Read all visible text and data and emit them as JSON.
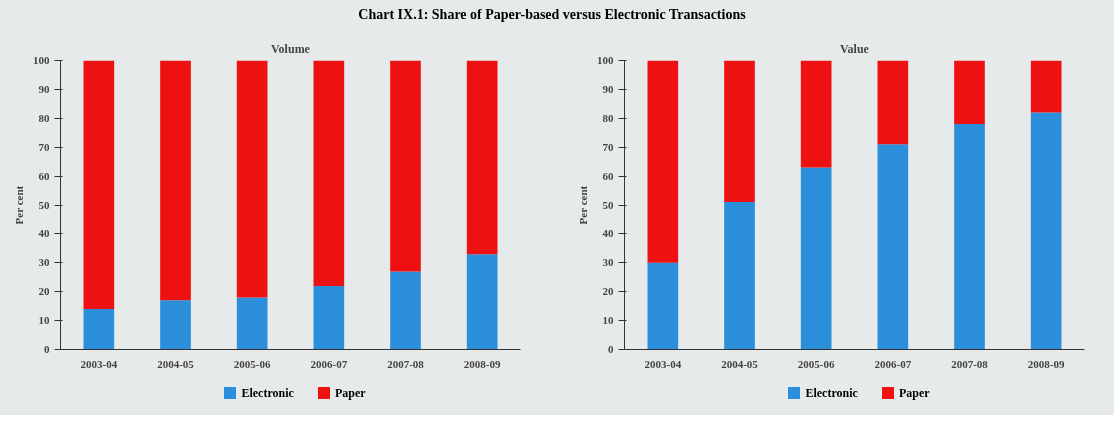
{
  "chart_data": [
    {
      "type": "bar",
      "title": "Chart IX.1: Share of Paper-based versus Electronic Transactions",
      "subtitle": "Volume",
      "ylabel": "Per cent",
      "categories": [
        "2003-04",
        "2004-05",
        "2005-06",
        "2006-07",
        "2007-08",
        "2008-09"
      ],
      "series": [
        {
          "name": "Electronic",
          "color": "#2b8fdc",
          "values": [
            14,
            17,
            18,
            22,
            27,
            33
          ]
        },
        {
          "name": "Paper",
          "color": "#ee1111",
          "values": [
            86,
            83,
            82,
            78,
            73,
            67
          ]
        }
      ],
      "stacked": true,
      "ylim": [
        0,
        100
      ],
      "yticks": [
        0,
        10,
        20,
        30,
        40,
        50,
        60,
        70,
        80,
        90,
        100
      ],
      "grid": false,
      "legend": "bottom"
    },
    {
      "type": "bar",
      "subtitle": "Value",
      "ylabel": "Per cent",
      "categories": [
        "2003-04",
        "2004-05",
        "2005-06",
        "2006-07",
        "2007-08",
        "2008-09"
      ],
      "series": [
        {
          "name": "Electronic",
          "color": "#2b8fdc",
          "values": [
            30,
            51,
            63,
            71,
            78,
            82
          ]
        },
        {
          "name": "Paper",
          "color": "#ee1111",
          "values": [
            70,
            49,
            37,
            29,
            22,
            18
          ]
        }
      ],
      "stacked": true,
      "ylim": [
        0,
        100
      ],
      "yticks": [
        0,
        10,
        20,
        30,
        40,
        50,
        60,
        70,
        80,
        90,
        100
      ],
      "grid": false,
      "legend": "bottom"
    }
  ]
}
